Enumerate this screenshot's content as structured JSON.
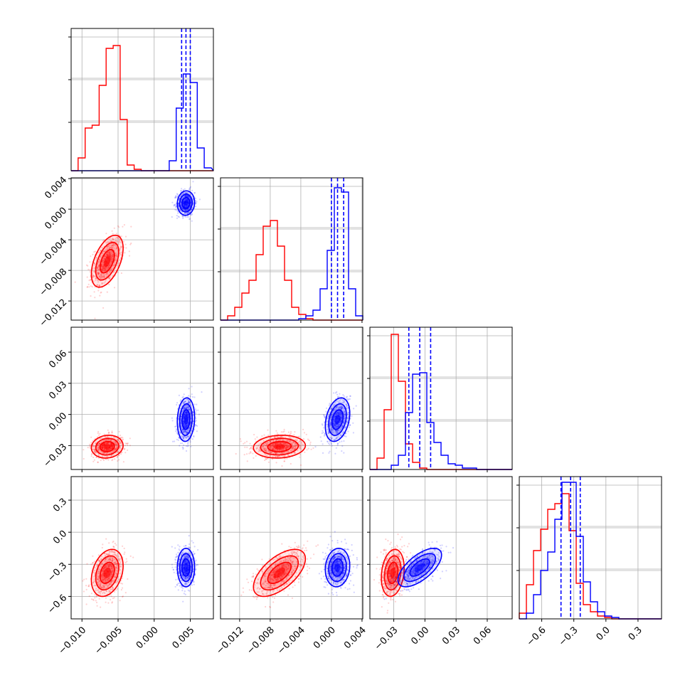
{
  "chart_data": {
    "type": "corner",
    "parameters": 4,
    "colors": {
      "a": "#ff0000",
      "b": "#0000ff"
    },
    "grid": true,
    "axes": [
      {
        "range": [
          -0.0115,
          0.0082
        ],
        "ticks": [
          -0.01,
          -0.005,
          0.0,
          0.005
        ],
        "tick_labels": [
          "−0.010",
          "−0.005",
          "0.000",
          "0.005"
        ]
      },
      {
        "range": [
          -0.0145,
          0.0041
        ],
        "ticks": [
          -0.012,
          -0.008,
          -0.004,
          0.0,
          0.004
        ],
        "tick_labels": [
          "−0.012",
          "−0.008",
          "−0.004",
          "0.000",
          "0.004"
        ]
      },
      {
        "range": [
          -0.053,
          0.084
        ],
        "ticks": [
          -0.03,
          0.0,
          0.03,
          0.06
        ],
        "tick_labels": [
          "−0.03",
          "0.00",
          "0.03",
          "0.06"
        ]
      },
      {
        "range": [
          -0.81,
          0.52
        ],
        "ticks": [
          -0.6,
          -0.3,
          0.0,
          0.3
        ],
        "tick_labels": [
          "−0.6",
          "−0.3",
          "0.0",
          "0.3"
        ]
      }
    ],
    "series": [
      {
        "color": "#ff0000",
        "mean": [
          -0.0065,
          -0.0068,
          -0.031,
          -0.38
        ],
        "std": [
          0.0011,
          0.0017,
          0.0055,
          0.11
        ],
        "corr": {
          "0-1": 0.5,
          "0-2": 0.1,
          "0-3": 0.3,
          "1-2": 0.1,
          "1-3": 0.6,
          "2-3": 0.2
        }
      },
      {
        "color": "#0000ff",
        "mean": [
          0.0044,
          0.0008,
          -0.005,
          -0.33
        ],
        "std": [
          0.0006,
          0.0008,
          0.0105,
          0.09
        ],
        "corr": {
          "0-1": 0.05,
          "0-2": 0.1,
          "0-3": 0.0,
          "1-2": 0.3,
          "1-3": 0.1,
          "2-3": 0.65
        }
      }
    ],
    "quantile_lines": {
      "color": "#0000ff",
      "series": 1,
      "q": [
        0.16,
        0.5,
        0.84
      ]
    },
    "histograms": [
      {
        "edges_start": -0.0115,
        "bin_width": 0.00097,
        "a": [
          0.0,
          0.09,
          0.3,
          0.32,
          0.6,
          0.86,
          0.88,
          0.36,
          0.04,
          0.01,
          0.0,
          0.0,
          0.0,
          0.0,
          0.0,
          0.0,
          0.0,
          0.0,
          0.0,
          0.0
        ],
        "b": [
          0.0,
          0.0,
          0.0,
          0.0,
          0.0,
          0.0,
          0.0,
          0.0,
          0.0,
          0.0,
          0.0,
          0.0,
          0.0,
          0.0,
          0.07,
          0.44,
          0.68,
          0.62,
          0.16,
          0.02
        ]
      },
      {
        "edges_start": -0.0145,
        "bin_width": 0.00093,
        "a": [
          0.0,
          0.03,
          0.09,
          0.19,
          0.28,
          0.46,
          0.66,
          0.7,
          0.52,
          0.28,
          0.09,
          0.04,
          0.01,
          0.0,
          0.0,
          0.0,
          0.0,
          0.0,
          0.0,
          0.0
        ],
        "b": [
          0.0,
          0.0,
          0.0,
          0.0,
          0.0,
          0.0,
          0.0,
          0.0,
          0.0,
          0.0,
          0.0,
          0.01,
          0.03,
          0.07,
          0.22,
          0.49,
          0.93,
          0.9,
          0.22,
          0.03
        ]
      },
      {
        "edges_start": -0.053,
        "bin_width": 0.00685,
        "a": [
          0.0,
          0.08,
          0.42,
          0.95,
          0.62,
          0.18,
          0.05,
          0.01,
          0.0,
          0.0,
          0.0,
          0.0,
          0.0,
          0.0,
          0.0,
          0.0,
          0.0,
          0.0,
          0.0,
          0.0
        ],
        "b": [
          0.0,
          0.0,
          0.0,
          0.03,
          0.1,
          0.4,
          0.67,
          0.68,
          0.33,
          0.19,
          0.1,
          0.04,
          0.03,
          0.01,
          0.01,
          0.0,
          0.0,
          0.0,
          0.0,
          0.0
        ],
        "note_bins": 20
      },
      {
        "edges_start": -0.81,
        "bin_width": 0.0665,
        "a": [
          0.04,
          0.24,
          0.48,
          0.63,
          0.77,
          0.81,
          0.88,
          0.62,
          0.25,
          0.1,
          0.05,
          0.02,
          0.01,
          0.0,
          0.0,
          0.0,
          0.0,
          0.0,
          0.0,
          0.0
        ],
        "b": [
          0.0,
          0.04,
          0.17,
          0.34,
          0.47,
          0.7,
          0.96,
          0.96,
          0.58,
          0.26,
          0.12,
          0.05,
          0.02,
          0.01,
          0.0,
          0.0,
          0.0,
          0.0,
          0.0,
          0.0
        ]
      }
    ]
  }
}
